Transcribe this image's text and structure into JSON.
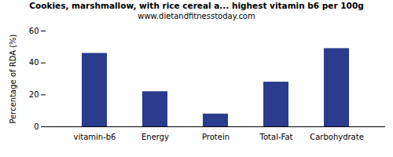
{
  "chart_data": {
    "type": "bar",
    "title": "Cookies, marshmallow, with rice cereal a... highest vitamin b6 per 100g",
    "subtitle": "www.dietandfitnesstoday.com",
    "y_label": "Percentage of RDA (%)",
    "categories": [
      "vitamin-b6",
      "Energy",
      "Protein",
      "Total-Fat",
      "Carbohydrate"
    ],
    "values": [
      46,
      22,
      8,
      28,
      49
    ],
    "color": "#2b3c8e",
    "ylim": [
      0,
      60
    ],
    "yticks": [
      0,
      20,
      40,
      60
    ],
    "grid": false
  }
}
